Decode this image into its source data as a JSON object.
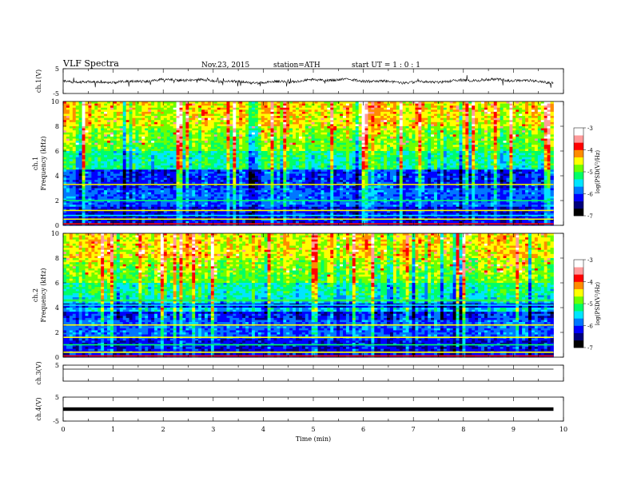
{
  "header": {
    "title": "VLF  Spectra",
    "date": "Nov.23, 2015",
    "station": "station=ATH",
    "start": "start  UT =   1 : 0  : 1"
  },
  "chart_data": [
    {
      "type": "line",
      "panel": "ch1-waveform",
      "ylabel": "ch.1(V)",
      "yticks": [
        "5",
        "-5"
      ],
      "ylim": [
        -5,
        5
      ],
      "xlim": [
        0,
        10
      ],
      "baseline": 0,
      "data_end": 9.8
    },
    {
      "type": "heatmap",
      "panel": "ch1-spectrogram",
      "ylabel_top": "ch.1",
      "ylabel": "Frequency  (kHz)",
      "yticks": [
        "0",
        "2",
        "4",
        "6",
        "8",
        "10"
      ],
      "ylim": [
        0,
        10
      ],
      "xlim": [
        0,
        10
      ],
      "data_end": 9.8,
      "colorbar": {
        "label": "log(PSD(V²/Hz)",
        "ticks": [
          "-3",
          "-4",
          "-5",
          "-6",
          "-7"
        ],
        "range": [
          -7,
          -3
        ],
        "colors": [
          "#000000",
          "#00007a",
          "#0000ff",
          "#0077ff",
          "#00e5ff",
          "#00ff66",
          "#6dff00",
          "#ffff00",
          "#ff8c00",
          "#ff0000",
          "#ff9a9a",
          "#ffffff"
        ]
      }
    },
    {
      "type": "heatmap",
      "panel": "ch2-spectrogram",
      "ylabel_top": "ch.2",
      "ylabel": "Frequency  (kHz)",
      "yticks": [
        "0",
        "2",
        "4",
        "6",
        "8",
        "10"
      ],
      "ylim": [
        0,
        10
      ],
      "xlim": [
        0,
        10
      ],
      "data_end": 9.8,
      "colorbar": {
        "label": "log(PSD(V²/Hz)",
        "ticks": [
          "-3",
          "-4",
          "-5",
          "-6",
          "-7"
        ],
        "range": [
          -7,
          -3
        ],
        "colors": [
          "#000000",
          "#00007a",
          "#0000ff",
          "#0077ff",
          "#00e5ff",
          "#00ff66",
          "#6dff00",
          "#ffff00",
          "#ff8c00",
          "#ff0000",
          "#ff9a9a",
          "#ffffff"
        ]
      }
    },
    {
      "type": "line",
      "panel": "ch3-waveform",
      "ylabel": "ch.3(V)",
      "yticks": [
        "5"
      ],
      "ylim": [
        -5,
        5
      ],
      "xlim": [
        0,
        10
      ],
      "baseline": 2.5,
      "data_end": 9.8
    },
    {
      "type": "line",
      "panel": "ch4-waveform",
      "ylabel": "ch.4(V)",
      "yticks": [
        "5",
        "-5"
      ],
      "ylim": [
        -5,
        5
      ],
      "xlim": [
        0,
        10
      ],
      "baseline": 0,
      "data_end": 9.8
    }
  ],
  "xaxis": {
    "label": "Time  (min)",
    "ticks": [
      "0",
      "1",
      "2",
      "3",
      "4",
      "5",
      "6",
      "7",
      "8",
      "9",
      "10"
    ]
  }
}
